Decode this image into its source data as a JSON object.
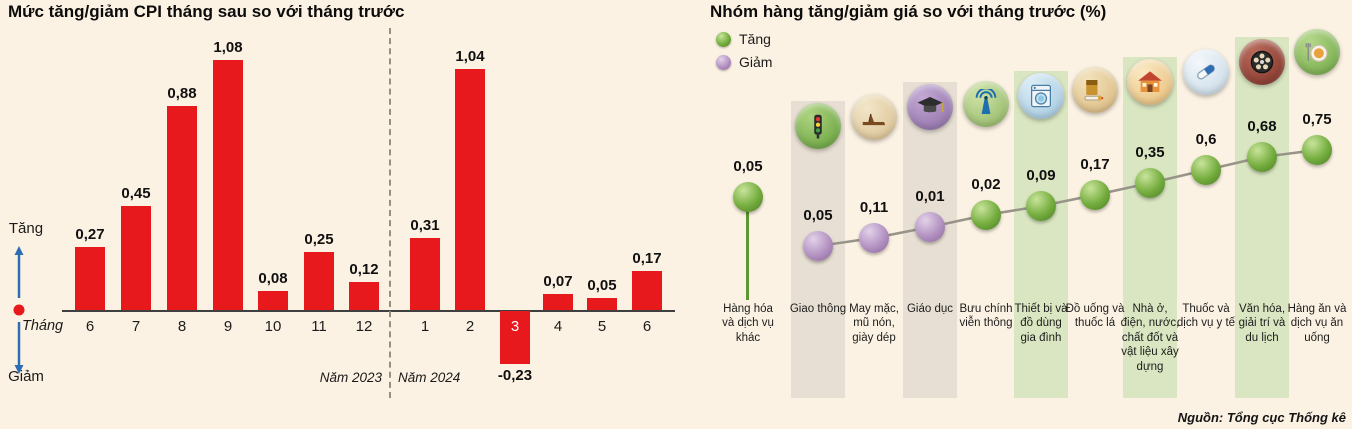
{
  "source": "Nguồn: Tổng cục Thống kê",
  "colors": {
    "background": "#fcf2e3",
    "bar_red": "#e8191d",
    "increase_green": "#74ad3e",
    "decrease_purple": "#b392c2",
    "band_gray": "#e7dfd3",
    "band_green": "#d9e6c1",
    "arrow_blue": "#2d6db4"
  },
  "chart_data": [
    {
      "type": "bar",
      "title": "Mức tăng/giảm CPI tháng sau so với tháng trước",
      "x_axis_label": "Tháng",
      "axis_up_label": "Tăng",
      "axis_down_label": "Giảm",
      "categories": [
        "6",
        "7",
        "8",
        "9",
        "10",
        "11",
        "12",
        "1",
        "2",
        "3",
        "4",
        "5",
        "6"
      ],
      "values": [
        0.27,
        0.45,
        0.88,
        1.08,
        0.08,
        0.25,
        0.12,
        0.31,
        1.04,
        -0.23,
        0.07,
        0.05,
        0.17
      ],
      "value_labels": [
        "0,27",
        "0,45",
        "0,88",
        "1,08",
        "0,08",
        "0,25",
        "0,12",
        "0,31",
        "1,04",
        "-0,23",
        "0,07",
        "0,05",
        "0,17"
      ],
      "group_labels": [
        "Năm 2023",
        "Năm 2024"
      ],
      "bar_color": "#e8191d",
      "ylim": [
        -0.3,
        1.2
      ],
      "grid": false,
      "legend_position": "none"
    },
    {
      "type": "scatter",
      "title": "Nhóm hàng tăng/giảm giá so với tháng trước (%)",
      "legend": [
        {
          "label": "Tăng",
          "color": "#74ad3e"
        },
        {
          "label": "Giảm",
          "color": "#b392c2"
        }
      ],
      "legend_position": "top-left",
      "points": [
        {
          "category": "Hàng hóa và dịch vụ khác",
          "value": 0.05,
          "value_label": "0,05",
          "direction": "up",
          "icon": "none"
        },
        {
          "category": "Giao thông",
          "value": 0.05,
          "value_label": "0,05",
          "direction": "down",
          "icon": "traffic-light"
        },
        {
          "category": "May mặc, mũ nón, giày dép",
          "value": 0.11,
          "value_label": "0,11",
          "direction": "down",
          "icon": "clothing-shoes"
        },
        {
          "category": "Giáo dục",
          "value": 0.01,
          "value_label": "0,01",
          "direction": "down",
          "icon": "graduation-cap"
        },
        {
          "category": "Bưu chính viễn thông",
          "value": 0.02,
          "value_label": "0,02",
          "direction": "up",
          "icon": "antenna"
        },
        {
          "category": "Thiết bị và đồ dùng gia đình",
          "value": 0.09,
          "value_label": "0,09",
          "direction": "up",
          "icon": "washing-machine"
        },
        {
          "category": "Đồ uống và thuốc lá",
          "value": 0.17,
          "value_label": "0,17",
          "direction": "up",
          "icon": "drinks-tobacco"
        },
        {
          "category": "Nhà ở, điện, nước, chất đốt và vật liệu xây dựng",
          "value": 0.35,
          "value_label": "0,35",
          "direction": "up",
          "icon": "house"
        },
        {
          "category": "Thuốc và dịch vụ y tế",
          "value": 0.6,
          "value_label": "0,6",
          "direction": "up",
          "icon": "medicine-pill"
        },
        {
          "category": "Văn hóa, giải trí và du lịch",
          "value": 0.68,
          "value_label": "0,68",
          "direction": "up",
          "icon": "film-reel"
        },
        {
          "category": "Hàng ăn và dịch vụ ăn uống",
          "value": 0.75,
          "value_label": "0,75",
          "direction": "up",
          "icon": "food-dining"
        }
      ]
    }
  ]
}
